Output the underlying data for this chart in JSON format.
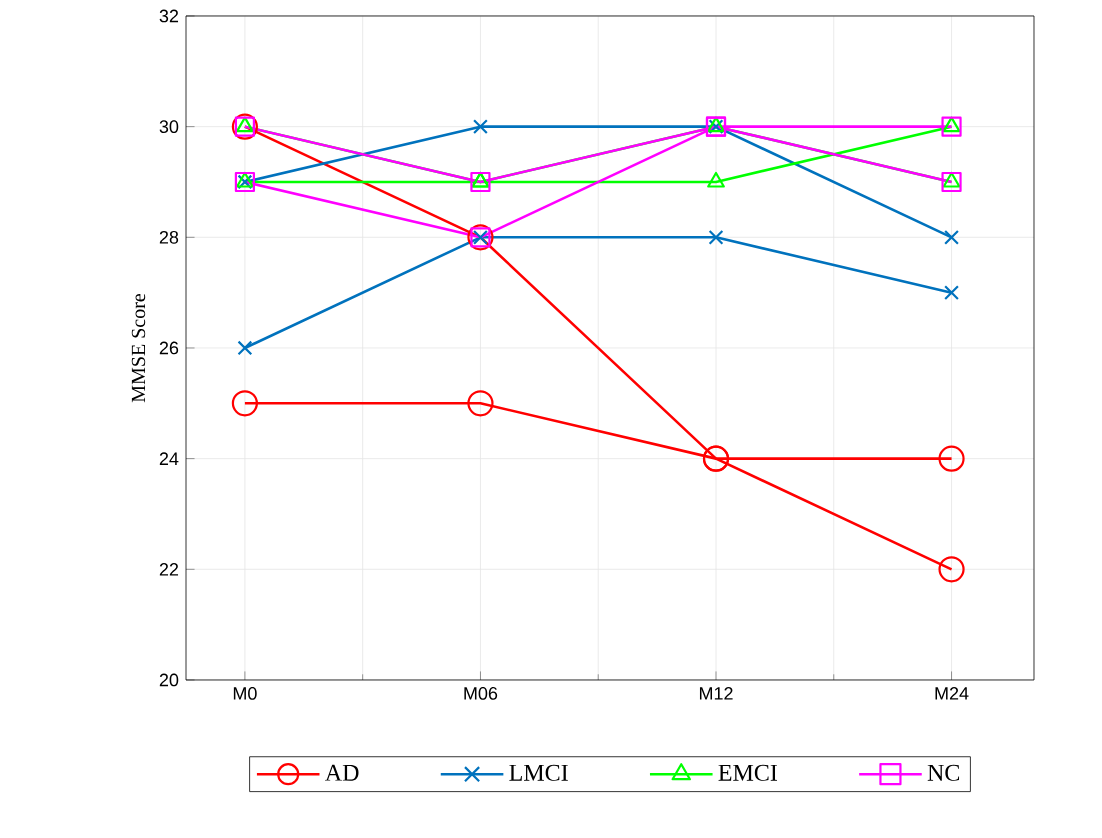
{
  "chart_data": {
    "type": "line",
    "ylabel": "MMSE Score",
    "categories": [
      "M0",
      "M06",
      "M12",
      "M24"
    ],
    "ylim": [
      20,
      32
    ],
    "yticks": [
      20,
      22,
      24,
      26,
      28,
      30,
      32
    ],
    "grid": true,
    "legend": "bottom",
    "series": [
      {
        "name": "AD",
        "color": "#ff0000",
        "marker": "circle",
        "values": [
          25,
          25,
          24,
          24
        ]
      },
      {
        "color": "#ff0000",
        "marker": "circle",
        "values": [
          30,
          28,
          24,
          22
        ]
      },
      {
        "name": "LMCI",
        "color": "#0072bd",
        "marker": "cross",
        "values": [
          26,
          28,
          28,
          27
        ]
      },
      {
        "color": "#0072bd",
        "marker": "cross",
        "values": [
          29,
          30,
          30,
          28
        ]
      },
      {
        "name": "EMCI",
        "color": "#00ff00",
        "marker": "triangle",
        "values": [
          29,
          29,
          29,
          30
        ]
      },
      {
        "color": "#00ff00",
        "marker": "triangle",
        "values": [
          30,
          29,
          30,
          29
        ]
      },
      {
        "name": "NC",
        "color": "#ff00ff",
        "marker": "square",
        "values": [
          30,
          29,
          30,
          29
        ]
      },
      {
        "color": "#ff00ff",
        "marker": "square",
        "values": [
          29,
          28,
          30,
          30
        ]
      }
    ]
  }
}
